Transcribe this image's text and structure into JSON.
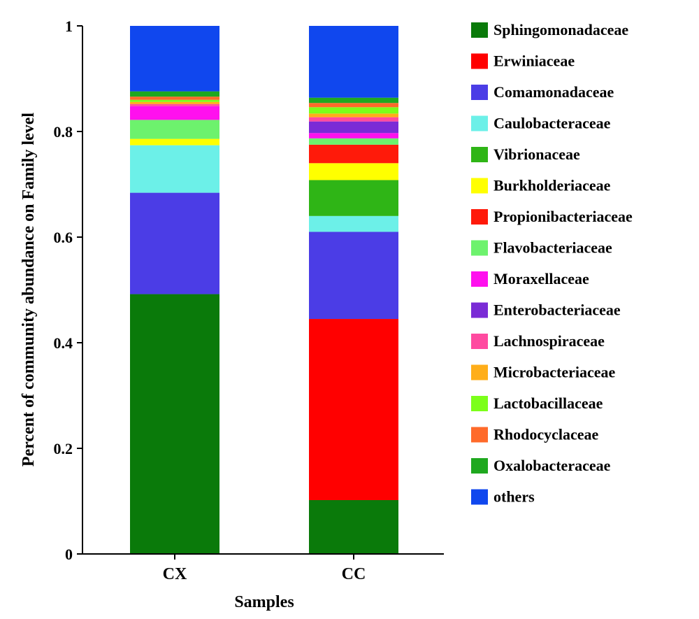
{
  "chart_data": {
    "type": "bar",
    "stacked": true,
    "categories": [
      "CX",
      "CC"
    ],
    "xlabel": "Samples",
    "ylabel": "Percent of community abundance on Family level",
    "ylim": [
      0,
      1
    ],
    "yticks": [
      "0",
      "0.2",
      "0.4",
      "0.6",
      "0.8",
      "1"
    ],
    "legend_position": "right",
    "grid": false,
    "series": [
      {
        "name": "Sphingomonadaceae",
        "color": "#0a7a0a",
        "values": [
          0.492,
          0.102
        ]
      },
      {
        "name": "Erwiniaceae",
        "color": "#ff0000",
        "values": [
          0.0,
          0.343
        ]
      },
      {
        "name": "Comamonadaceae",
        "color": "#4b3de6",
        "values": [
          0.192,
          0.165
        ]
      },
      {
        "name": "Caulobacteraceae",
        "color": "#6cf0e8",
        "values": [
          0.09,
          0.03
        ]
      },
      {
        "name": "Vibrionaceae",
        "color": "#2fb516",
        "values": [
          0.0,
          0.068
        ]
      },
      {
        "name": "Burkholderiaceae",
        "color": "#ffff00",
        "values": [
          0.012,
          0.032
        ]
      },
      {
        "name": "Propionibacteriaceae",
        "color": "#ff1a0a",
        "values": [
          0.0,
          0.035
        ]
      },
      {
        "name": "Flavobacteriaceae",
        "color": "#6df26d",
        "values": [
          0.036,
          0.012
        ]
      },
      {
        "name": "Moraxellaceae",
        "color": "#ff10ee",
        "values": [
          0.026,
          0.01
        ]
      },
      {
        "name": "Enterobacteriaceae",
        "color": "#7a2bd6",
        "values": [
          0.0,
          0.022
        ]
      },
      {
        "name": "Lachnospiraceae",
        "color": "#ff4aa0",
        "values": [
          0.004,
          0.008
        ]
      },
      {
        "name": "Microbacteriaceae",
        "color": "#ffae1a",
        "values": [
          0.004,
          0.007
        ]
      },
      {
        "name": "Lactobacillaceae",
        "color": "#7cff1a",
        "values": [
          0.004,
          0.012
        ]
      },
      {
        "name": "Rhodocyclaceae",
        "color": "#ff6a2a",
        "values": [
          0.006,
          0.008
        ]
      },
      {
        "name": "Oxalobacteraceae",
        "color": "#1fa81f",
        "values": [
          0.01,
          0.01
        ]
      },
      {
        "name": "others",
        "color": "#1047ee",
        "values": [
          0.124,
          0.136
        ]
      }
    ]
  }
}
